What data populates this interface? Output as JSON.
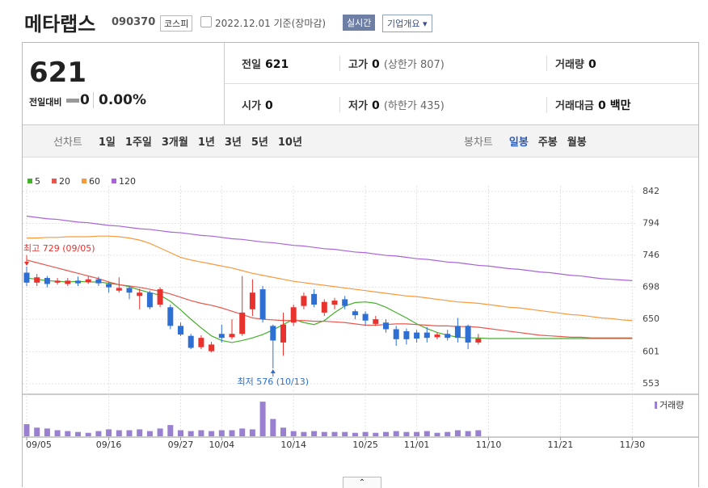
{
  "header": {
    "title": "메타랩스",
    "code": "090370",
    "market": "코스피",
    "date": "2022.12.01 기준(장마감)",
    "realtime": "실시간",
    "company": "기업개요"
  },
  "price": {
    "current": "621",
    "change_label": "전일대비",
    "change": "0",
    "rate": "0.00%"
  },
  "info": {
    "prev_label": "전일",
    "prev": "621",
    "high_label": "고가",
    "high": "0",
    "upper_limit": "(상한가 807)",
    "volume_label": "거래량",
    "volume": "0",
    "open_label": "시가",
    "open": "0",
    "low_label": "저가",
    "low": "0",
    "lower_limit": "(하한가 435)",
    "amount_label": "거래대금",
    "amount": "0",
    "amount_unit": "백만"
  },
  "periods": {
    "line_label": "선차트",
    "line_items": [
      "1일",
      "1주일",
      "3개월",
      "1년",
      "3년",
      "5년",
      "10년"
    ],
    "candle_label": "봉차트",
    "candle_items": [
      "일봉",
      "주봉",
      "월봉"
    ]
  },
  "chart_data": {
    "type": "candlestick",
    "categories": [
      "09/05",
      null,
      null,
      null,
      null,
      null,
      null,
      null,
      "09/16",
      null,
      null,
      null,
      null,
      null,
      null,
      "09/27",
      null,
      null,
      null,
      "10/04",
      null,
      null,
      null,
      null,
      null,
      null,
      "10/14",
      null,
      null,
      null,
      null,
      null,
      null,
      "10/25",
      null,
      null,
      null,
      null,
      "11/01",
      null,
      null,
      null,
      null,
      null,
      null,
      "11/10",
      null,
      null,
      null,
      null,
      null,
      null,
      "11/21",
      null,
      null,
      null,
      null,
      null,
      null,
      "11/30"
    ],
    "open": [
      720,
      705,
      712,
      705,
      703,
      708,
      706,
      710,
      703,
      693,
      697,
      685,
      690,
      672,
      668,
      640,
      625,
      608,
      602,
      628,
      623,
      628,
      665,
      695,
      640,
      615,
      645,
      670,
      688,
      660,
      672,
      680,
      662,
      658,
      643,
      645,
      635,
      632,
      630,
      630,
      623,
      628,
      640,
      640,
      615,
      null,
      null,
      null,
      null,
      null,
      null,
      null,
      null,
      null,
      null,
      null,
      null,
      null,
      null,
      null
    ],
    "high": [
      729,
      718,
      715,
      712,
      712,
      714,
      715,
      714,
      706,
      713,
      700,
      696,
      693,
      698,
      672,
      645,
      628,
      626,
      616,
      642,
      650,
      715,
      710,
      700,
      642,
      660,
      672,
      690,
      695,
      680,
      682,
      685,
      665,
      662,
      655,
      650,
      640,
      636,
      634,
      638,
      630,
      634,
      652,
      642,
      628,
      null,
      null,
      null,
      null,
      null,
      null,
      null,
      null,
      null,
      null,
      null,
      null,
      null,
      null,
      null
    ],
    "low": [
      700,
      700,
      698,
      702,
      700,
      700,
      703,
      700,
      690,
      690,
      680,
      665,
      665,
      668,
      635,
      625,
      605,
      605,
      600,
      615,
      620,
      625,
      655,
      645,
      576,
      595,
      640,
      665,
      668,
      655,
      665,
      665,
      650,
      640,
      640,
      630,
      610,
      612,
      615,
      615,
      620,
      618,
      615,
      605,
      612,
      null,
      null,
      null,
      null,
      null,
      null,
      null,
      null,
      null,
      null,
      null,
      null,
      null,
      null,
      null
    ],
    "close": [
      705,
      713,
      703,
      708,
      708,
      704,
      710,
      704,
      698,
      697,
      690,
      690,
      668,
      695,
      640,
      627,
      607,
      622,
      612,
      622,
      628,
      660,
      690,
      650,
      618,
      642,
      668,
      685,
      672,
      676,
      678,
      670,
      656,
      648,
      650,
      635,
      620,
      620,
      621,
      622,
      627,
      622,
      622,
      615,
      621,
      null,
      null,
      null,
      null,
      null,
      null,
      null,
      null,
      null,
      null,
      null,
      null,
      null,
      null,
      null
    ],
    "volume": [
      14,
      10,
      9,
      7,
      6,
      5,
      4,
      6,
      8,
      7,
      7,
      8,
      6,
      9,
      13,
      7,
      6,
      7,
      6,
      7,
      7,
      9,
      8,
      40,
      20,
      10,
      6,
      5,
      6,
      5,
      5,
      5,
      4,
      5,
      4,
      5,
      6,
      5,
      5,
      6,
      4,
      5,
      7,
      6,
      7,
      null,
      null,
      null,
      null,
      null,
      null,
      null,
      null,
      null,
      null,
      null,
      null,
      null,
      null,
      null
    ],
    "volume_label": "거래량",
    "volume_color": "#9a80d0",
    "volume_ylim": [
      0,
      42
    ],
    "up_color": "#e8322e",
    "down_color": "#2e6fd3",
    "series": [
      {
        "name": "5",
        "color": "#45b02c",
        "values": [
          712,
          710,
          708,
          707,
          706,
          707,
          706,
          706,
          704,
          702,
          699,
          694,
          690,
          686,
          677,
          664,
          650,
          637,
          625,
          618,
          615,
          618,
          622,
          627,
          634,
          642,
          650,
          645,
          642,
          648,
          660,
          670,
          675,
          676,
          674,
          668,
          660,
          652,
          643,
          636,
          630,
          626,
          623,
          622,
          622,
          621,
          621,
          621,
          621,
          621,
          621,
          621,
          621,
          621,
          621,
          621,
          621,
          621,
          621,
          621
        ]
      },
      {
        "name": "20",
        "color": "#e8574d",
        "values": [
          739,
          735,
          731,
          727,
          723,
          719,
          715,
          711,
          706,
          702,
          700,
          698,
          695,
          692,
          688,
          683,
          678,
          674,
          671,
          667,
          662,
          657,
          652,
          650,
          649,
          648,
          648,
          648,
          647,
          647,
          646,
          645,
          643,
          641,
          641,
          642,
          643,
          643,
          642,
          641,
          640,
          640,
          639,
          639,
          638,
          636,
          634,
          632,
          630,
          628,
          626,
          625,
          624,
          623,
          623,
          622,
          622,
          622,
          622,
          622
        ]
      },
      {
        "name": "60",
        "color": "#f79a3e",
        "values": [
          772,
          772,
          773,
          773,
          774,
          774,
          774,
          775,
          775,
          774,
          772,
          769,
          764,
          757,
          750,
          743,
          739,
          736,
          733,
          730,
          727,
          723,
          719,
          716,
          713,
          710,
          707,
          705,
          703,
          701,
          699,
          697,
          695,
          693,
          691,
          689,
          687,
          685,
          684,
          682,
          680,
          678,
          676,
          675,
          674,
          672,
          670,
          668,
          667,
          665,
          663,
          661,
          659,
          657,
          656,
          654,
          652,
          651,
          649,
          648
        ]
      },
      {
        "name": "120",
        "color": "#a864d8",
        "values": [
          805,
          803,
          801,
          800,
          798,
          796,
          795,
          793,
          791,
          790,
          788,
          786,
          785,
          783,
          781,
          780,
          778,
          776,
          775,
          773,
          771,
          770,
          768,
          766,
          765,
          763,
          761,
          760,
          758,
          756,
          755,
          753,
          751,
          750,
          748,
          746,
          745,
          743,
          741,
          740,
          738,
          736,
          735,
          733,
          731,
          730,
          728,
          726,
          725,
          723,
          721,
          720,
          718,
          716,
          715,
          713,
          711,
          710,
          709,
          708
        ]
      }
    ],
    "ylim": [
      553,
      842
    ],
    "yticks": [
      842,
      794,
      746,
      698,
      650,
      601,
      553
    ],
    "grid": true,
    "annotations": [
      {
        "text": "최고 729 (09/05)",
        "index": 0,
        "value": 729
      },
      {
        "text": "최저 576 (10/13)",
        "index": 24,
        "value": 576
      }
    ]
  }
}
